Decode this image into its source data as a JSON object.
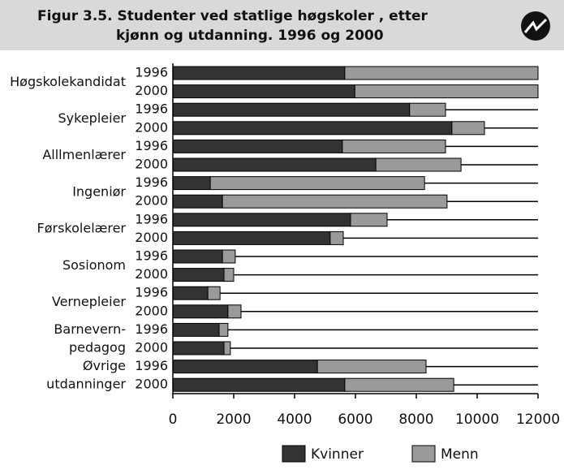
{
  "chart_data": {
    "type": "stacked_barh",
    "title": [
      "Figur 3.5.  Studenter ved statlige høgskoler , etter",
      "kjønn og utdanning. 1996 og 2000"
    ],
    "groups": [
      [
        "Høgskolekandidat"
      ],
      [
        "Sykepleier"
      ],
      [
        "Alllmenlærer"
      ],
      [
        "Ingeniør"
      ],
      [
        "Førskolelærer"
      ],
      [
        "Sosionom"
      ],
      [
        "Vernepleier"
      ],
      [
        "Barnevern-",
        "pedagog"
      ],
      [
        "Øvrige",
        "utdanninger"
      ]
    ],
    "categories": [
      "1996",
      "2000",
      "1996",
      "2000",
      "1996",
      "2000",
      "1996",
      "2000",
      "1996",
      "2000",
      "1996",
      "2000",
      "1996",
      "2000",
      "1996",
      "2000",
      "1996",
      "2000"
    ],
    "series": [
      {
        "name": "Kvinner",
        "color": "#333333",
        "values": [
          5650,
          5980,
          7780,
          9170,
          5570,
          6670,
          1230,
          1630,
          5840,
          5170,
          1630,
          1680,
          1150,
          1810,
          1520,
          1680,
          4750,
          5650
        ]
      },
      {
        "name": "Menn",
        "color": "#9a9a9a",
        "values": [
          6350,
          6020,
          1180,
          1070,
          3390,
          2800,
          7040,
          7380,
          1200,
          430,
          420,
          320,
          400,
          430,
          290,
          210,
          3570,
          3580
        ]
      }
    ],
    "xlim": [
      0,
      12000
    ],
    "xticks": [
      0,
      2000,
      4000,
      6000,
      8000,
      10000,
      12000
    ]
  }
}
